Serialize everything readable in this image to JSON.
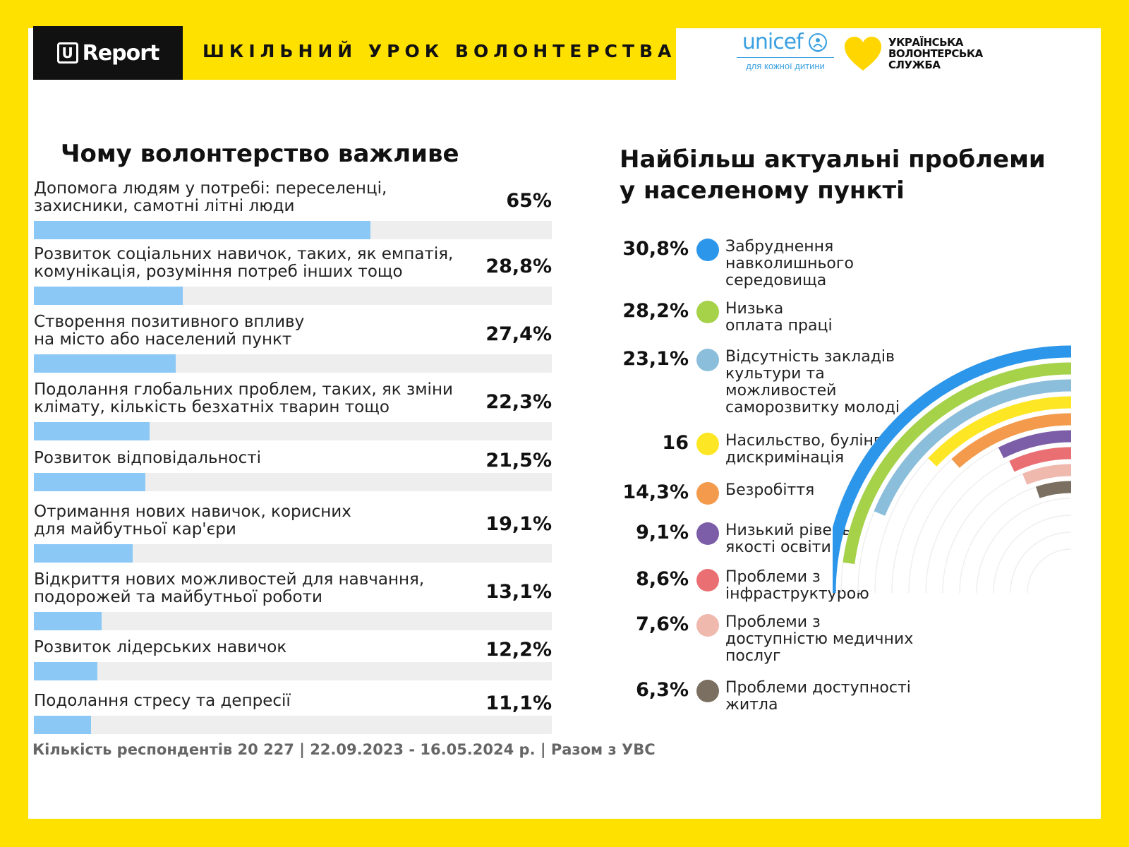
{
  "header": {
    "brand": "Report",
    "brand_mark": "U",
    "title": "ШКІЛЬНИЙ УРОК ВОЛОНТЕРСТВА",
    "unicef_name": "unicef",
    "unicef_tagline": "для кожної дитини",
    "uvs_line1": "УКРАЇНСЬКА",
    "uvs_line2": "ВОЛОНТЕРСЬКА",
    "uvs_line3": "СЛУЖБА"
  },
  "left_title": "Чому волонтерство важливе",
  "right_title_line1": "Найбільш актуальні проблеми",
  "right_title_line2": "у населеному пункті",
  "footer": "Кількість респондентів 20 227 | 22.09.2023 - 16.05.2024 р. | Разом з УВС",
  "chart_data": [
    {
      "type": "bar",
      "title": "Чому волонтерство важливе",
      "categories": [
        "Допомога людям у потребі: переселенці, захисники, самотні літні люди",
        "Розвиток соціальних навичок, таких, як емпатія, комунікація, розуміння потреб інших тощо",
        "Створення позитивного впливу на місто або населений пункт",
        "Подолання глобальних проблем, таких, як зміни клімату, кількість безхатніх тварин тощо",
        "Розвиток відповідальності",
        "Отримання нових навичок, корисних для майбутньої кар'єри",
        "Відкриття нових можливостей для навчання, подорожей та майбутньої роботи",
        "Розвиток лідерських навичок",
        "Подолання стресу та депресії"
      ],
      "label_lines": [
        [
          "Допомога людям у потребі: переселенці,",
          "захисники, самотні літні люди"
        ],
        [
          "Розвиток соціальних навичок, таких, як емпатія,",
          "комунікація, розуміння потреб інших тощо"
        ],
        [
          "Створення позитивного впливу",
          "на місто або населений пункт"
        ],
        [
          "Подолання глобальних проблем, таких, як зміни",
          "клімату, кількість безхатніх тварин тощо"
        ],
        [
          "Розвиток відповідальності"
        ],
        [
          "Отримання нових навичок, корисних",
          "для майбутньої кар'єри"
        ],
        [
          "Відкриття нових можливостей для навчання,",
          "подорожей та майбутньої роботи"
        ],
        [
          "Розвиток лідерських навичок"
        ],
        [
          "Подолання стресу та депресії"
        ]
      ],
      "values": [
        65,
        28.8,
        27.4,
        22.3,
        21.5,
        19.1,
        13.1,
        12.2,
        11.1
      ],
      "value_labels": [
        "65%",
        "28,8%",
        "27,4%",
        "22,3%",
        "21,5%",
        "19,1%",
        "13,1%",
        "12,2%",
        "11,1%"
      ],
      "xlim": [
        0,
        100
      ],
      "bar_color": "#8cc8f6",
      "track_color": "#eeeeee"
    },
    {
      "type": "radial-bar",
      "title": "Найбільш актуальні проблеми у населеному пункті",
      "categories": [
        "Забруднення навколишнього середовища",
        "Низька оплата праці",
        "Відсутність закладів культури та можливостей саморозвитку молоді",
        "Насильство, булінг, дискримінація",
        "Безробіття",
        "Низький рівень якості освіти",
        "Проблеми з інфраструктурою",
        "Проблеми з доступністю медичних послуг",
        "Проблеми доступності житла"
      ],
      "label_lines": [
        [
          "Забруднення",
          "навколишнього",
          "середовища"
        ],
        [
          "Низька",
          "оплата праці"
        ],
        [
          "Відсутність закладів",
          "культури та",
          "можливостей",
          "саморозвитку молоді"
        ],
        [
          "Насильство, булінг,",
          "дискримінація"
        ],
        [
          "Безробіття"
        ],
        [
          "Низький рівень",
          "якості освіти"
        ],
        [
          "Проблеми з",
          "інфраструктурою"
        ],
        [
          "Проблеми з",
          "доступністю медичних",
          "послуг"
        ],
        [
          "Проблеми доступності",
          "житла"
        ]
      ],
      "values": [
        30.8,
        28.2,
        23.1,
        16,
        14.3,
        9.1,
        8.6,
        7.6,
        6.3
      ],
      "value_labels": [
        "30,8%",
        "28,2%",
        "23,1%",
        "16",
        "14,3%",
        "9,1%",
        "8,6%",
        "7,6%",
        "6,3%"
      ],
      "colors": [
        "#2b96ea",
        "#a6d24a",
        "#8bbedb",
        "#fde725",
        "#f39a4c",
        "#7b5ea7",
        "#ea6f73",
        "#f0b9ae",
        "#7a6f60"
      ]
    }
  ]
}
